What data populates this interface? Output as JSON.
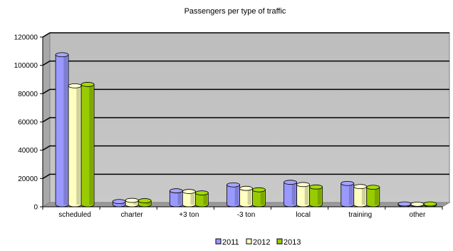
{
  "chart_data": {
    "type": "bar",
    "title": "Passengers per type of traffic",
    "xlabel": "",
    "ylabel": "",
    "ylim": [
      0,
      120000
    ],
    "yticks": [
      0,
      20000,
      40000,
      60000,
      80000,
      100000,
      120000
    ],
    "grid": true,
    "legend_position": "bottom",
    "categories": [
      "scheduled",
      "charter",
      "+3 ton",
      "-3 ton",
      "local",
      "training",
      "other"
    ],
    "series": [
      {
        "name": "2011",
        "color": "#9999ff",
        "values": [
          106000,
          2200,
          9800,
          14000,
          15800,
          15000,
          500
        ]
      },
      {
        "name": "2012",
        "color": "#ffffc0",
        "values": [
          84000,
          3000,
          9300,
          11500,
          14200,
          12800,
          300
        ]
      },
      {
        "name": "2013",
        "color": "#99cc00",
        "values": [
          85000,
          2800,
          8300,
          10500,
          12500,
          12300,
          500
        ]
      }
    ]
  }
}
